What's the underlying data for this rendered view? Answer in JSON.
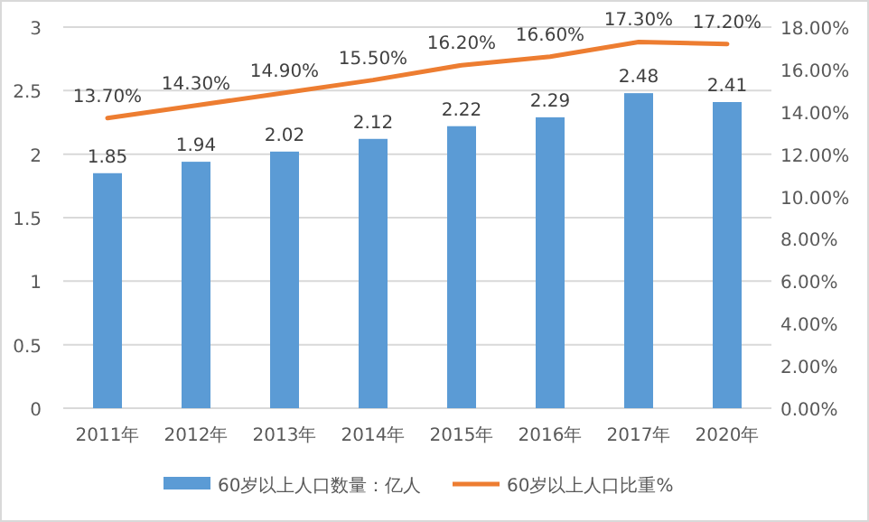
{
  "chart_data": {
    "type": "bar",
    "categories": [
      "2011年",
      "2012年",
      "2013年",
      "2014年",
      "2015年",
      "2016年",
      "2017年",
      "2020年"
    ],
    "series": [
      {
        "name": "60岁以上人口数量：亿人",
        "color": "#5b9bd5",
        "values": [
          1.85,
          1.94,
          2.02,
          2.12,
          2.22,
          2.29,
          2.48,
          2.41
        ],
        "value_labels": [
          "1.85",
          "1.94",
          "2.02",
          "2.12",
          "2.22",
          "2.29",
          "2.48",
          "2.41"
        ]
      },
      {
        "name": "60岁以上人口比重%",
        "type": "line",
        "axis": "y2",
        "color": "#ed7d31",
        "values": [
          13.7,
          14.3,
          14.9,
          15.5,
          16.2,
          16.6,
          17.3,
          17.2
        ],
        "value_labels": [
          "13.70%",
          "14.30%",
          "14.90%",
          "15.50%",
          "16.20%",
          "16.60%",
          "17.30%",
          "17.20%"
        ]
      }
    ],
    "ylim": [
      0,
      3
    ],
    "yticks": [
      0,
      0.5,
      1,
      1.5,
      2,
      2.5,
      3
    ],
    "y2lim": [
      0,
      18
    ],
    "y2ticks": [
      {
        "value": 0,
        "label": "0.00%"
      },
      {
        "value": 2,
        "label": "2.00%"
      },
      {
        "value": 4,
        "label": "4.00%"
      },
      {
        "value": 6,
        "label": "6.00%"
      },
      {
        "value": 8,
        "label": "8.00%"
      },
      {
        "value": 10,
        "label": "10.00%"
      },
      {
        "value": 12,
        "label": "12.00%"
      },
      {
        "value": 14,
        "label": "14.00%"
      },
      {
        "value": 16,
        "label": "16.00%"
      },
      {
        "value": 18,
        "label": "18.00%"
      }
    ],
    "grid": "y",
    "legend": "bottom",
    "marker": "none"
  }
}
